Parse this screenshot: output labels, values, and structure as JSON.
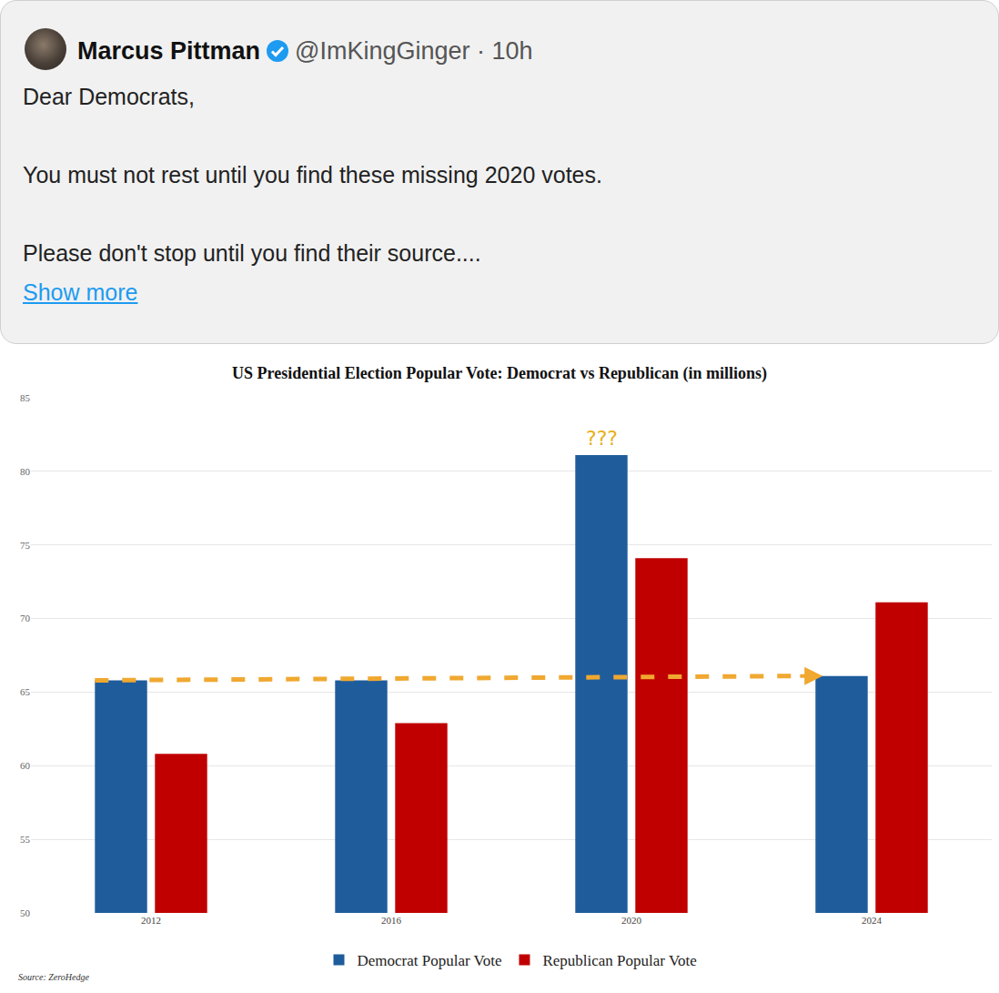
{
  "tweet": {
    "name": "Marcus Pittman",
    "handle": "@ImKingGinger · 10h",
    "paragraphs": [
      "Dear Democrats,",
      "You must not rest until you find these missing 2020 votes.",
      "Please don't stop until you find their source...."
    ],
    "link": "Show more"
  },
  "chart_data": {
    "type": "bar",
    "title": "US Presidential Election Popular Vote: Democrat vs Republican (in millions)",
    "categories": [
      "2012",
      "2016",
      "2020",
      "2024"
    ],
    "series": [
      {
        "name": "Democrat Popular Vote",
        "color": "#1f5c9c",
        "values": [
          65.8,
          65.8,
          81.1,
          66.1
        ]
      },
      {
        "name": "Republican Popular Vote",
        "color": "#c00000",
        "values": [
          60.8,
          62.9,
          74.1,
          71.1
        ]
      }
    ],
    "ylim": [
      50,
      85
    ],
    "yticks": [
      50,
      55,
      60,
      65,
      70,
      75,
      80,
      85
    ],
    "grid": true,
    "legend": "bottom",
    "annotations": [
      {
        "text": "???",
        "category": "2020",
        "series": "Democrat Popular Vote"
      }
    ],
    "source": "Source: ZeroHedge"
  }
}
